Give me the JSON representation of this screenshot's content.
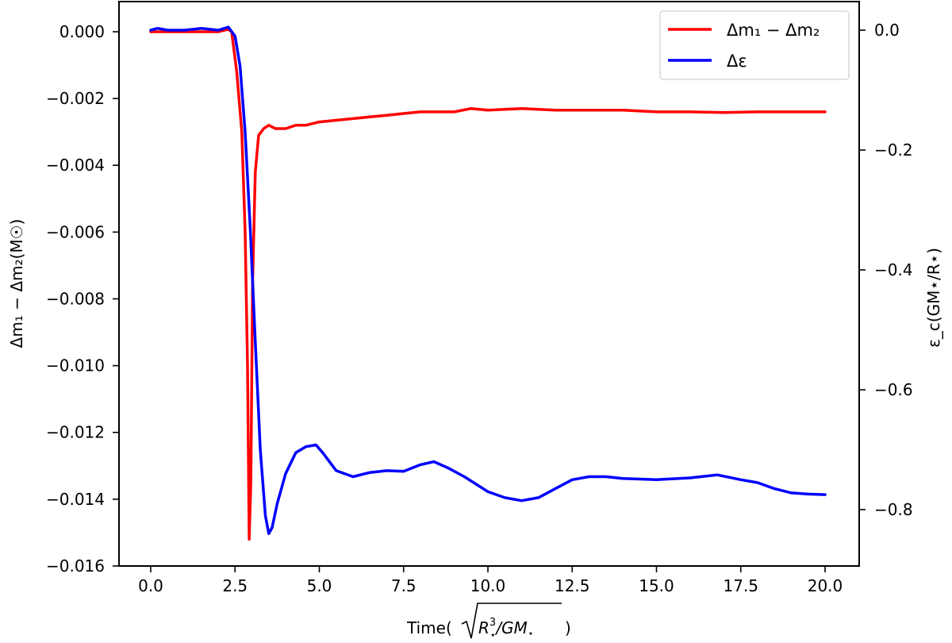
{
  "chart_data": {
    "type": "line",
    "title": "",
    "xlabel": "Time(√(R⋆³/GM⋆))",
    "ylabel_left": "Δm₁ − Δm₂(M☉)",
    "ylabel_right": "ε_c(GM⋆/R⋆)",
    "xlim": [
      -1.0,
      20.95
    ],
    "ylim_left": [
      -0.016,
      0.0009
    ],
    "ylim_right": [
      -0.9,
      0.05
    ],
    "x_ticks": [
      0.0,
      2.5,
      5.0,
      7.5,
      10.0,
      12.5,
      15.0,
      17.5,
      20.0
    ],
    "x_tick_labels": [
      "0.0",
      "2.5",
      "5.0",
      "7.5",
      "10.0",
      "12.5",
      "15.0",
      "17.5",
      "20.0"
    ],
    "y_left_ticks": [
      0.0,
      -0.002,
      -0.004,
      -0.006,
      -0.008,
      -0.01,
      -0.012,
      -0.014,
      -0.016
    ],
    "y_left_tick_labels": [
      "0.000",
      "−0.002",
      "−0.004",
      "−0.006",
      "−0.008",
      "−0.010",
      "−0.012",
      "−0.014",
      "−0.016"
    ],
    "y_right_ticks": [
      0.0,
      -0.2,
      -0.4,
      -0.6,
      -0.8
    ],
    "y_right_tick_labels": [
      "0.0",
      "−0.2",
      "−0.4",
      "−0.6",
      "−0.8"
    ],
    "grid": false,
    "legend_position": "upper right",
    "series": [
      {
        "name": "Δm₁ − Δm₂",
        "axis": "left",
        "color": "#ff0000",
        "x": [
          0.0,
          0.5,
          1.0,
          1.5,
          2.0,
          2.2,
          2.3,
          2.4,
          2.55,
          2.7,
          2.8,
          2.87,
          2.92,
          2.97,
          3.02,
          3.1,
          3.2,
          3.35,
          3.5,
          3.7,
          4.0,
          4.3,
          4.6,
          5.0,
          5.5,
          6.0,
          6.5,
          7.0,
          7.5,
          8.0,
          8.5,
          9.0,
          9.5,
          10.0,
          11.0,
          12.0,
          13.0,
          14.0,
          15.0,
          16.0,
          17.0,
          18.0,
          19.0,
          20.0
        ],
        "values": [
          0.0,
          0.0,
          0.0,
          0.0,
          0.0,
          5e-05,
          7e-05,
          0.0,
          -0.0012,
          -0.003,
          -0.006,
          -0.01,
          -0.0152,
          -0.0135,
          -0.0075,
          -0.0042,
          -0.0031,
          -0.0029,
          -0.0028,
          -0.0029,
          -0.0029,
          -0.0028,
          -0.0028,
          -0.0027,
          -0.00265,
          -0.0026,
          -0.00255,
          -0.0025,
          -0.00245,
          -0.0024,
          -0.0024,
          -0.0024,
          -0.0023,
          -0.00235,
          -0.0023,
          -0.00235,
          -0.00235,
          -0.00235,
          -0.0024,
          -0.0024,
          -0.00242,
          -0.0024,
          -0.0024,
          -0.0024
        ]
      },
      {
        "name": "Δε",
        "axis": "right",
        "color": "#0000ff",
        "x": [
          0.0,
          0.2,
          0.5,
          1.0,
          1.5,
          2.0,
          2.3,
          2.5,
          2.65,
          2.8,
          2.95,
          3.1,
          3.25,
          3.4,
          3.5,
          3.6,
          3.75,
          4.0,
          4.3,
          4.6,
          4.9,
          5.1,
          5.5,
          6.0,
          6.5,
          7.0,
          7.5,
          8.0,
          8.4,
          8.8,
          9.3,
          10.0,
          10.5,
          11.0,
          11.5,
          12.0,
          12.5,
          13.0,
          13.5,
          14.0,
          15.0,
          16.0,
          16.8,
          17.5,
          18.0,
          18.5,
          19.0,
          19.5,
          20.0
        ],
        "values": [
          0.0,
          0.003,
          0.0,
          0.0,
          0.003,
          0.0,
          0.005,
          -0.01,
          -0.06,
          -0.17,
          -0.33,
          -0.52,
          -0.7,
          -0.81,
          -0.84,
          -0.83,
          -0.79,
          -0.74,
          -0.705,
          -0.695,
          -0.692,
          -0.705,
          -0.735,
          -0.745,
          -0.738,
          -0.735,
          -0.736,
          -0.725,
          -0.72,
          -0.73,
          -0.745,
          -0.77,
          -0.78,
          -0.785,
          -0.78,
          -0.765,
          -0.75,
          -0.745,
          -0.745,
          -0.748,
          -0.75,
          -0.747,
          -0.742,
          -0.75,
          -0.755,
          -0.765,
          -0.772,
          -0.774,
          -0.775
        ]
      }
    ]
  },
  "legend": {
    "items": [
      {
        "label": "Δm₁ − Δm₂",
        "color": "#ff0000"
      },
      {
        "label": "Δε",
        "color": "#0000ff"
      }
    ]
  },
  "axes": {
    "xlabel_prefix": "Time(",
    "xlabel_suffix": ")",
    "ylabel_left": "Δm₁ − Δm₂(M☉)",
    "ylabel_right": "ε_c(GM⋆/R⋆)"
  }
}
